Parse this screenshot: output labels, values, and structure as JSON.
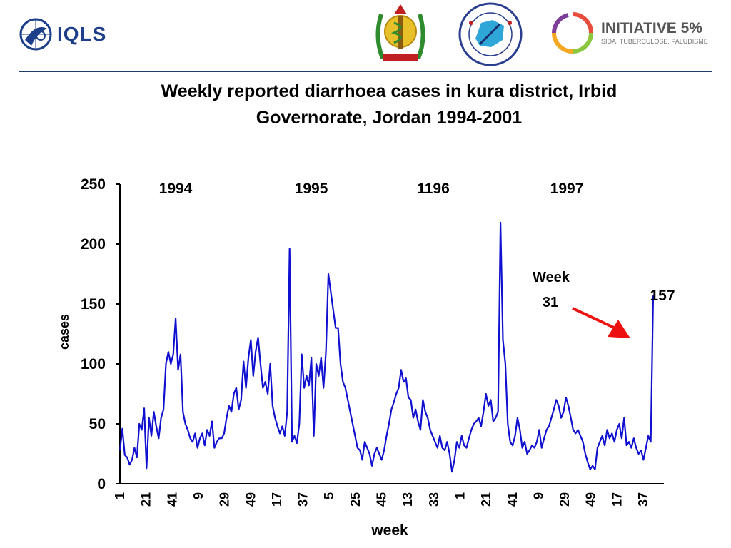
{
  "header": {
    "iqls_logo_text": "IQLS",
    "initiative_title": "INITIATIVE 5%",
    "initiative_subtitle": "SIDA, TUBERCULOSE, PALUDISME"
  },
  "chart_data": {
    "type": "line",
    "title": "Weekly reported diarrhoea cases in kura district, Irbid Governorate, Jordan 1994-2001",
    "xlabel": "week",
    "ylabel": "cases",
    "ylim": [
      0,
      250
    ],
    "y_ticks": [
      "250",
      "200",
      "150",
      "100",
      "50",
      "0"
    ],
    "x_ticks": [
      "1",
      "21",
      "41",
      "9",
      "29",
      "49",
      "17",
      "37",
      "5",
      "25",
      "45",
      "13",
      "33",
      "1",
      "21",
      "41",
      "9",
      "29",
      "49",
      "17",
      "37"
    ],
    "year_labels": [
      "1994",
      "1995",
      "1196",
      "1997"
    ],
    "line_color": "#1010d0",
    "annotation": {
      "label_line1": "Week",
      "label_line2": "31",
      "value_label": "157",
      "arrow_color": "#ee1111"
    },
    "x_min": 1,
    "x_max": 220,
    "series": [
      {
        "values": [
          28,
          46,
          24,
          22,
          16,
          20,
          30,
          22,
          50,
          45,
          63,
          13,
          55,
          40,
          60,
          48,
          38,
          55,
          62,
          100,
          110,
          100,
          108,
          138,
          95,
          108,
          60,
          50,
          45,
          38,
          35,
          42,
          30,
          38,
          42,
          32,
          45,
          40,
          52,
          30,
          35,
          38,
          38,
          42,
          55,
          65,
          60,
          75,
          80,
          62,
          70,
          102,
          80,
          105,
          120,
          90,
          110,
          122,
          100,
          80,
          85,
          75,
          100,
          65,
          55,
          48,
          42,
          48,
          40,
          60,
          196,
          35,
          40,
          34,
          50,
          108,
          80,
          90,
          82,
          105,
          40,
          100,
          90,
          105,
          80,
          110,
          175,
          160,
          145,
          130,
          130,
          100,
          85,
          80,
          70,
          60,
          50,
          40,
          30,
          28,
          20,
          35,
          30,
          25,
          15,
          25,
          30,
          25,
          20,
          28,
          40,
          50,
          62,
          68,
          75,
          80,
          95,
          85,
          88,
          72,
          70,
          55,
          62,
          52,
          45,
          70,
          60,
          55,
          45,
          40,
          35,
          30,
          40,
          30,
          28,
          35,
          25,
          10,
          20,
          35,
          30,
          40,
          32,
          30,
          38,
          45,
          50,
          52,
          55,
          48,
          60,
          75,
          65,
          70,
          52,
          55,
          60,
          218,
          120,
          100,
          50,
          35,
          32,
          40,
          55,
          45,
          30,
          35,
          25,
          28,
          32,
          30,
          35,
          45,
          30,
          38,
          45,
          48,
          55,
          62,
          70,
          65,
          55,
          60,
          72,
          65,
          55,
          45,
          42,
          45,
          40,
          35,
          25,
          18,
          12,
          15,
          12,
          30,
          35,
          40,
          32,
          45,
          38,
          42,
          35,
          45,
          50,
          38,
          55,
          32,
          35,
          30,
          38,
          30,
          25,
          28,
          20,
          30,
          40,
          35,
          157
        ]
      }
    ]
  }
}
